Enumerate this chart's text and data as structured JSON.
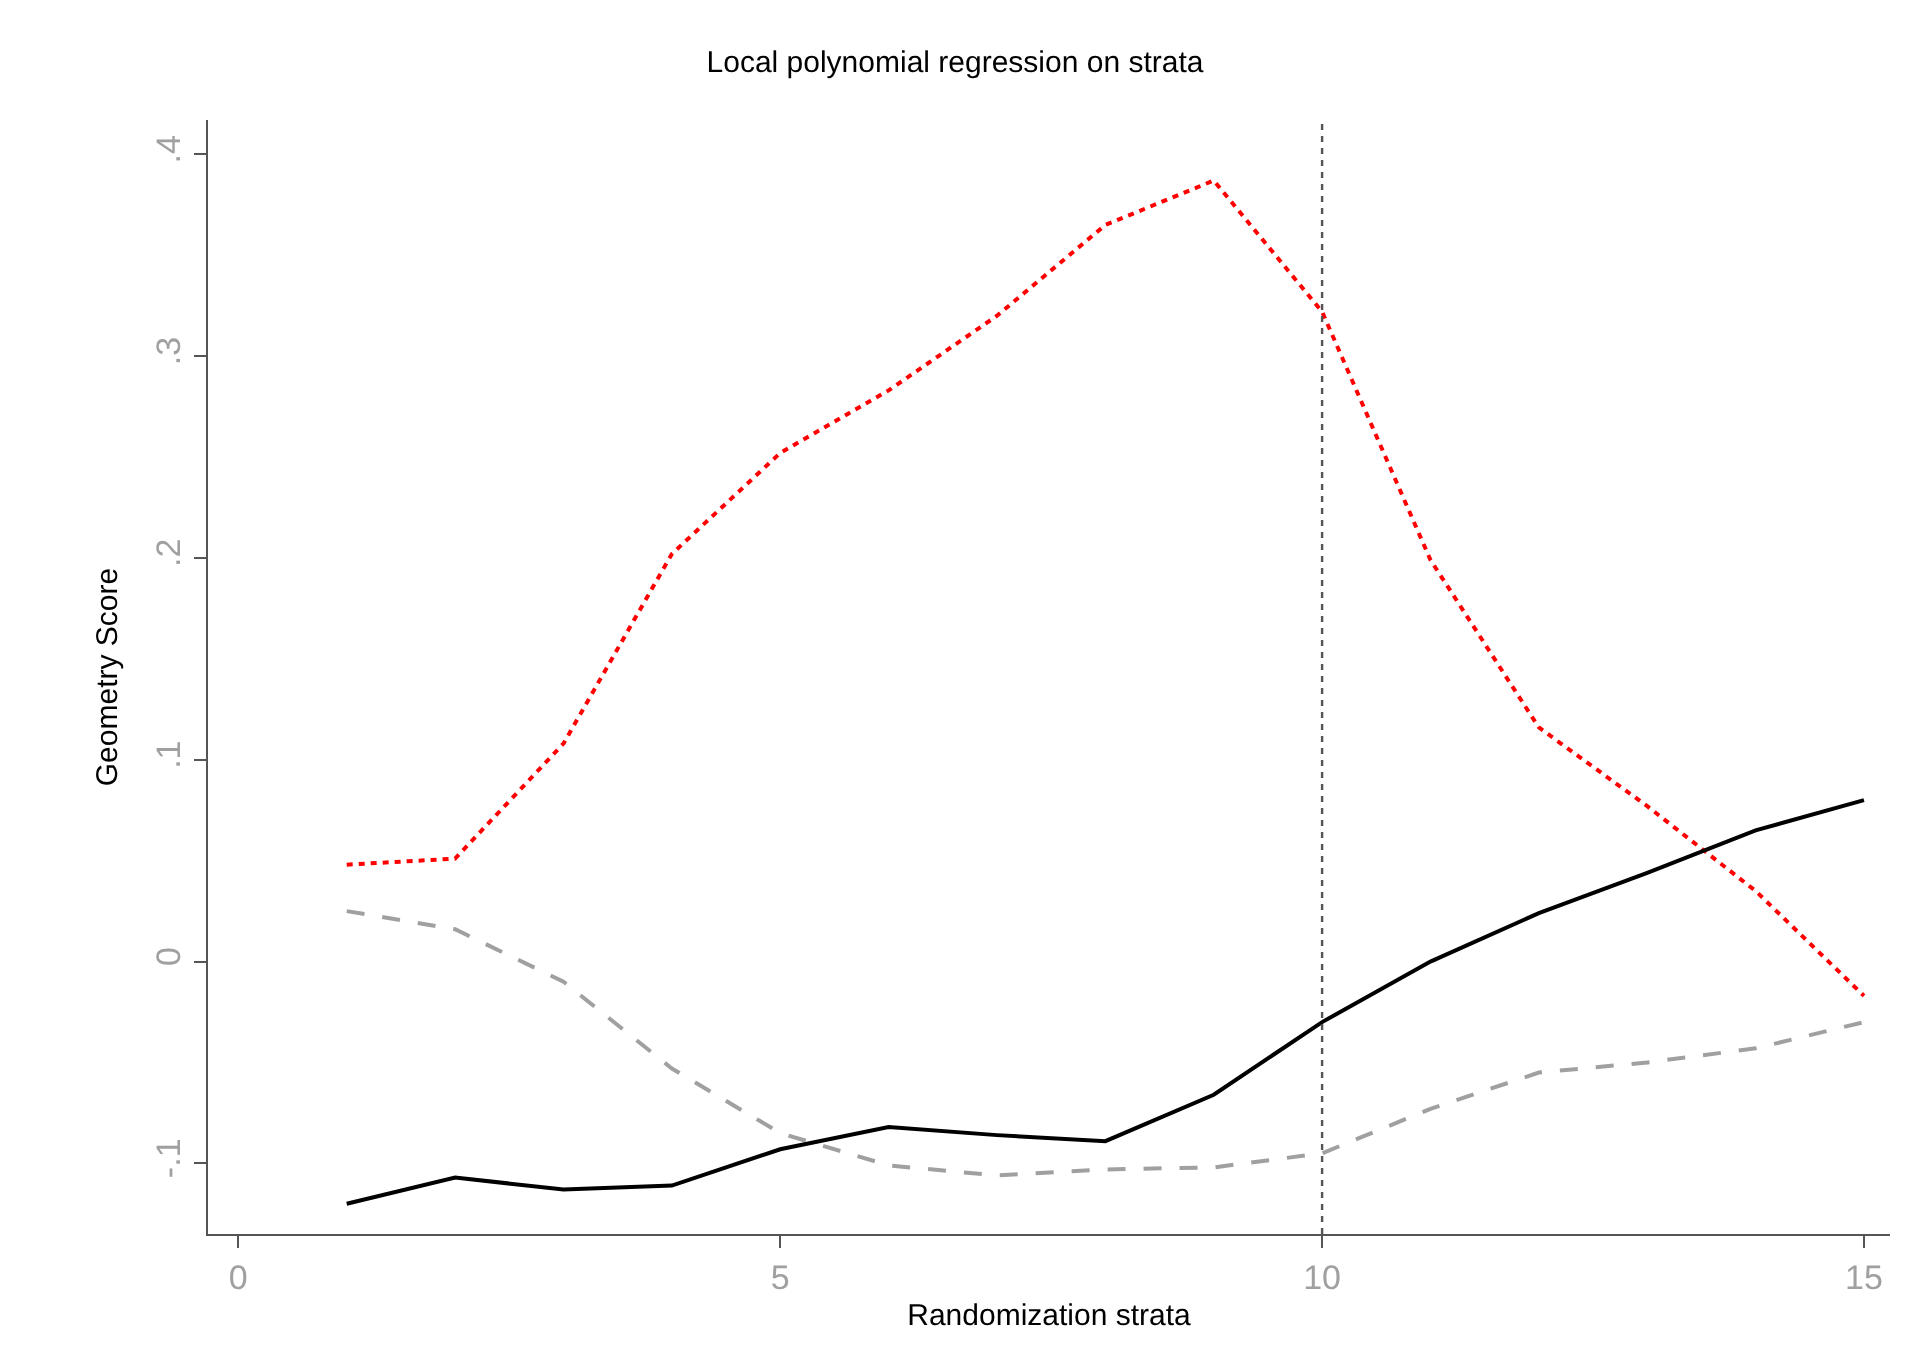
{
  "chart_data": {
    "type": "line",
    "title": "Local polynomial regression on strata",
    "xlabel": "Randomization strata",
    "ylabel": "Geometry Score",
    "x": [
      1,
      2,
      3,
      4,
      5,
      6,
      7,
      8,
      9,
      10,
      11,
      12,
      13,
      14,
      15
    ],
    "series": [
      {
        "color": "#ff0000",
        "line_style": "dotted",
        "values": [
          0.048,
          0.051,
          0.108,
          0.202,
          0.252,
          0.283,
          0.32,
          0.365,
          0.387,
          0.322,
          0.199,
          0.116,
          0.077,
          0.035,
          -0.017
        ]
      },
      {
        "color": "#a0a0a0",
        "line_style": "dashed",
        "values": [
          0.025,
          0.016,
          -0.01,
          -0.053,
          -0.085,
          -0.101,
          -0.106,
          -0.103,
          -0.102,
          -0.095,
          -0.073,
          -0.055,
          -0.05,
          -0.043,
          -0.03
        ]
      },
      {
        "color": "#000000",
        "line_style": "solid",
        "values": [
          -0.12,
          -0.107,
          -0.113,
          -0.111,
          -0.093,
          -0.082,
          -0.086,
          -0.089,
          -0.066,
          -0.03,
          0,
          0.024,
          0.044,
          0.065,
          0.08
        ]
      }
    ],
    "xlim": [
      -0.28,
      15.24
    ],
    "xticks": [
      0,
      5,
      10,
      15
    ],
    "ylim": [
      -0.135,
      0.417
    ],
    "yticks": [
      {
        "value": -0.1,
        "label": "-.1"
      },
      0,
      {
        "value": 0.1,
        "label": ".1"
      },
      {
        "value": 0.2,
        "label": ".2"
      },
      {
        "value": 0.3,
        "label": ".3"
      },
      {
        "value": 0.4,
        "label": ".4"
      }
    ],
    "ref_lines": [
      {
        "axis": "x",
        "value": 10,
        "color": "#555555",
        "line_style": "dotted"
      }
    ],
    "grid": false,
    "marker": "none"
  }
}
